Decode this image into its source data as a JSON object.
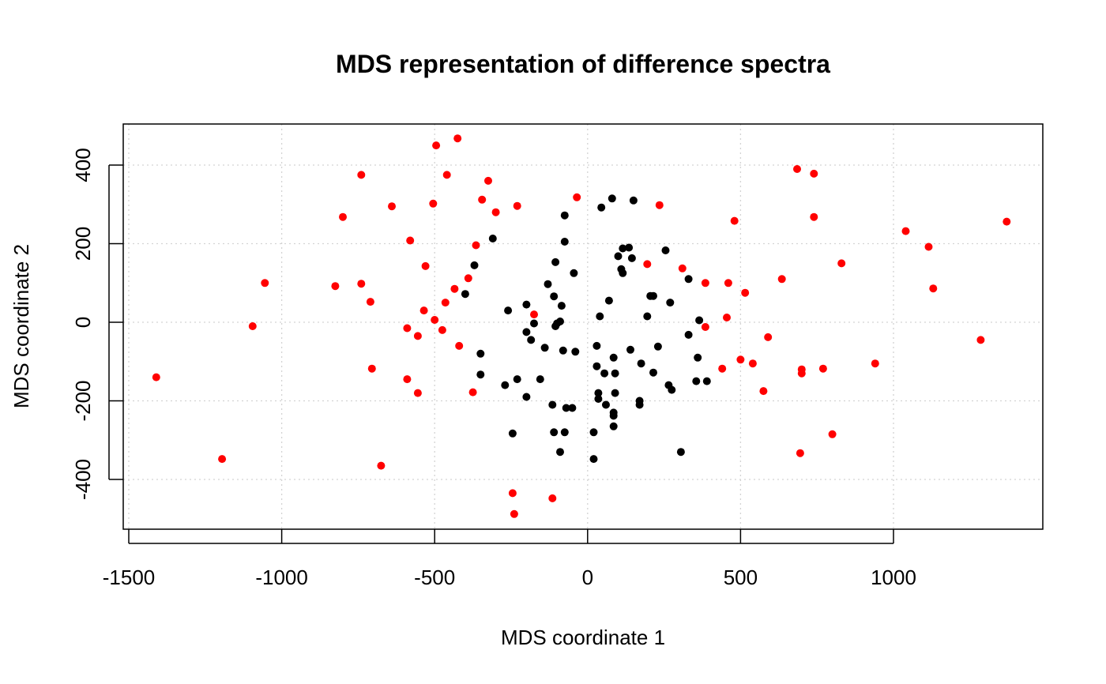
{
  "chart_data": {
    "type": "scatter",
    "title": "MDS representation of difference spectra",
    "xlabel": "MDS coordinate 1",
    "ylabel": "MDS coordinate 2",
    "xlim": [
      -1500,
      1450
    ],
    "ylim": [
      -520,
      510
    ],
    "xticks": [
      -1500,
      -1000,
      -500,
      0,
      500,
      1000
    ],
    "yticks": [
      -400,
      -200,
      0,
      200,
      400
    ],
    "grid": true,
    "series": [
      {
        "color": "#ff0000",
        "points": [
          [
            -425,
            468
          ],
          [
            -495,
            450
          ],
          [
            -325,
            360
          ],
          [
            -460,
            375
          ],
          [
            -740,
            375
          ],
          [
            -35,
            318
          ],
          [
            -345,
            312
          ],
          [
            -230,
            296
          ],
          [
            -640,
            295
          ],
          [
            -505,
            302
          ],
          [
            -300,
            280
          ],
          [
            -800,
            268
          ],
          [
            -580,
            208
          ],
          [
            -365,
            196
          ],
          [
            -530,
            143
          ],
          [
            -390,
            112
          ],
          [
            -435,
            85
          ],
          [
            -1055,
            100
          ],
          [
            -825,
            92
          ],
          [
            -740,
            98
          ],
          [
            -710,
            52
          ],
          [
            -465,
            50
          ],
          [
            -535,
            30
          ],
          [
            -500,
            6
          ],
          [
            -475,
            -20
          ],
          [
            -590,
            -15
          ],
          [
            -555,
            -35
          ],
          [
            -175,
            20
          ],
          [
            -420,
            -60
          ],
          [
            -705,
            -118
          ],
          [
            -590,
            -145
          ],
          [
            -555,
            -180
          ],
          [
            -375,
            -178
          ],
          [
            -1095,
            -10
          ],
          [
            -1410,
            -140
          ],
          [
            -1195,
            -348
          ],
          [
            -675,
            -365
          ],
          [
            -245,
            -435
          ],
          [
            -115,
            -448
          ],
          [
            -240,
            -488
          ],
          [
            685,
            390
          ],
          [
            740,
            378
          ],
          [
            740,
            268
          ],
          [
            235,
            298
          ],
          [
            480,
            258
          ],
          [
            1040,
            232
          ],
          [
            1115,
            192
          ],
          [
            1370,
            256
          ],
          [
            195,
            148
          ],
          [
            310,
            137
          ],
          [
            385,
            100
          ],
          [
            460,
            100
          ],
          [
            515,
            75
          ],
          [
            635,
            110
          ],
          [
            830,
            150
          ],
          [
            1130,
            86
          ],
          [
            385,
            -12
          ],
          [
            455,
            12
          ],
          [
            590,
            -38
          ],
          [
            500,
            -95
          ],
          [
            540,
            -105
          ],
          [
            440,
            -118
          ],
          [
            700,
            -120
          ],
          [
            770,
            -118
          ],
          [
            700,
            -130
          ],
          [
            940,
            -105
          ],
          [
            1285,
            -45
          ],
          [
            575,
            -175
          ],
          [
            800,
            -285
          ],
          [
            695,
            -333
          ]
        ]
      },
      {
        "color": "#000000",
        "points": [
          [
            80,
            315
          ],
          [
            150,
            310
          ],
          [
            45,
            292
          ],
          [
            -75,
            272
          ],
          [
            115,
            188
          ],
          [
            135,
            190
          ],
          [
            255,
            183
          ],
          [
            -310,
            213
          ],
          [
            -75,
            205
          ],
          [
            100,
            168
          ],
          [
            145,
            163
          ],
          [
            -105,
            153
          ],
          [
            -370,
            145
          ],
          [
            110,
            135
          ],
          [
            115,
            125
          ],
          [
            -45,
            125
          ],
          [
            330,
            110
          ],
          [
            -130,
            97
          ],
          [
            -110,
            66
          ],
          [
            205,
            67
          ],
          [
            215,
            67
          ],
          [
            -400,
            72
          ],
          [
            70,
            55
          ],
          [
            270,
            50
          ],
          [
            -85,
            42
          ],
          [
            -200,
            45
          ],
          [
            -260,
            30
          ],
          [
            40,
            15
          ],
          [
            195,
            15
          ],
          [
            365,
            5
          ],
          [
            -90,
            2
          ],
          [
            -100,
            -3
          ],
          [
            -105,
            -10
          ],
          [
            -175,
            -3
          ],
          [
            -200,
            -25
          ],
          [
            -185,
            -45
          ],
          [
            -140,
            -65
          ],
          [
            -80,
            -72
          ],
          [
            -40,
            -75
          ],
          [
            -350,
            -80
          ],
          [
            30,
            -60
          ],
          [
            140,
            -70
          ],
          [
            230,
            -62
          ],
          [
            330,
            -32
          ],
          [
            360,
            -90
          ],
          [
            85,
            -90
          ],
          [
            30,
            -112
          ],
          [
            -350,
            -133
          ],
          [
            -155,
            -145
          ],
          [
            -230,
            -145
          ],
          [
            55,
            -130
          ],
          [
            90,
            -130
          ],
          [
            175,
            -105
          ],
          [
            215,
            -128
          ],
          [
            265,
            -160
          ],
          [
            275,
            -172
          ],
          [
            355,
            -150
          ],
          [
            390,
            -150
          ],
          [
            -270,
            -160
          ],
          [
            -200,
            -190
          ],
          [
            35,
            -180
          ],
          [
            35,
            -195
          ],
          [
            90,
            -180
          ],
          [
            170,
            -200
          ],
          [
            170,
            -210
          ],
          [
            -115,
            -210
          ],
          [
            -70,
            -218
          ],
          [
            -50,
            -218
          ],
          [
            60,
            -210
          ],
          [
            85,
            -230
          ],
          [
            85,
            -238
          ],
          [
            85,
            -265
          ],
          [
            -245,
            -283
          ],
          [
            -110,
            -280
          ],
          [
            -75,
            -280
          ],
          [
            20,
            -280
          ],
          [
            -90,
            -330
          ],
          [
            20,
            -348
          ],
          [
            305,
            -330
          ]
        ]
      }
    ]
  }
}
